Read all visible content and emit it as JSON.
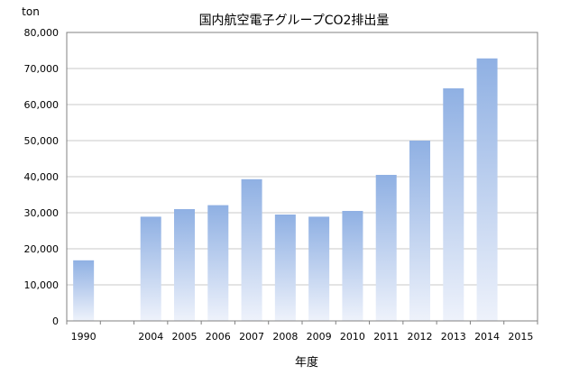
{
  "chart_data": {
    "type": "bar",
    "title": "国内航空電子グループCO2排出量",
    "ylabel": "ton",
    "xlabel": "年度",
    "ylim": [
      0,
      80000
    ],
    "y_ticks": [
      "0",
      "10,000",
      "20,000",
      "30,000",
      "40,000",
      "50,000",
      "60,000",
      "70,000",
      "80,000"
    ],
    "categories": [
      "1990",
      "",
      "2004",
      "2005",
      "2006",
      "2007",
      "2008",
      "2009",
      "2010",
      "2011",
      "2012",
      "2013",
      "2014",
      "2015"
    ],
    "values": [
      16800,
      null,
      28900,
      31000,
      32100,
      39300,
      29500,
      28900,
      30500,
      40500,
      50000,
      64500,
      72800,
      null
    ],
    "grid": true,
    "legend": "none",
    "colors": {
      "bar_top": "#8FB0E3",
      "bar_bottom": "#EEF2FB",
      "grid": "#C8C8C8",
      "axis": "#808080"
    }
  }
}
